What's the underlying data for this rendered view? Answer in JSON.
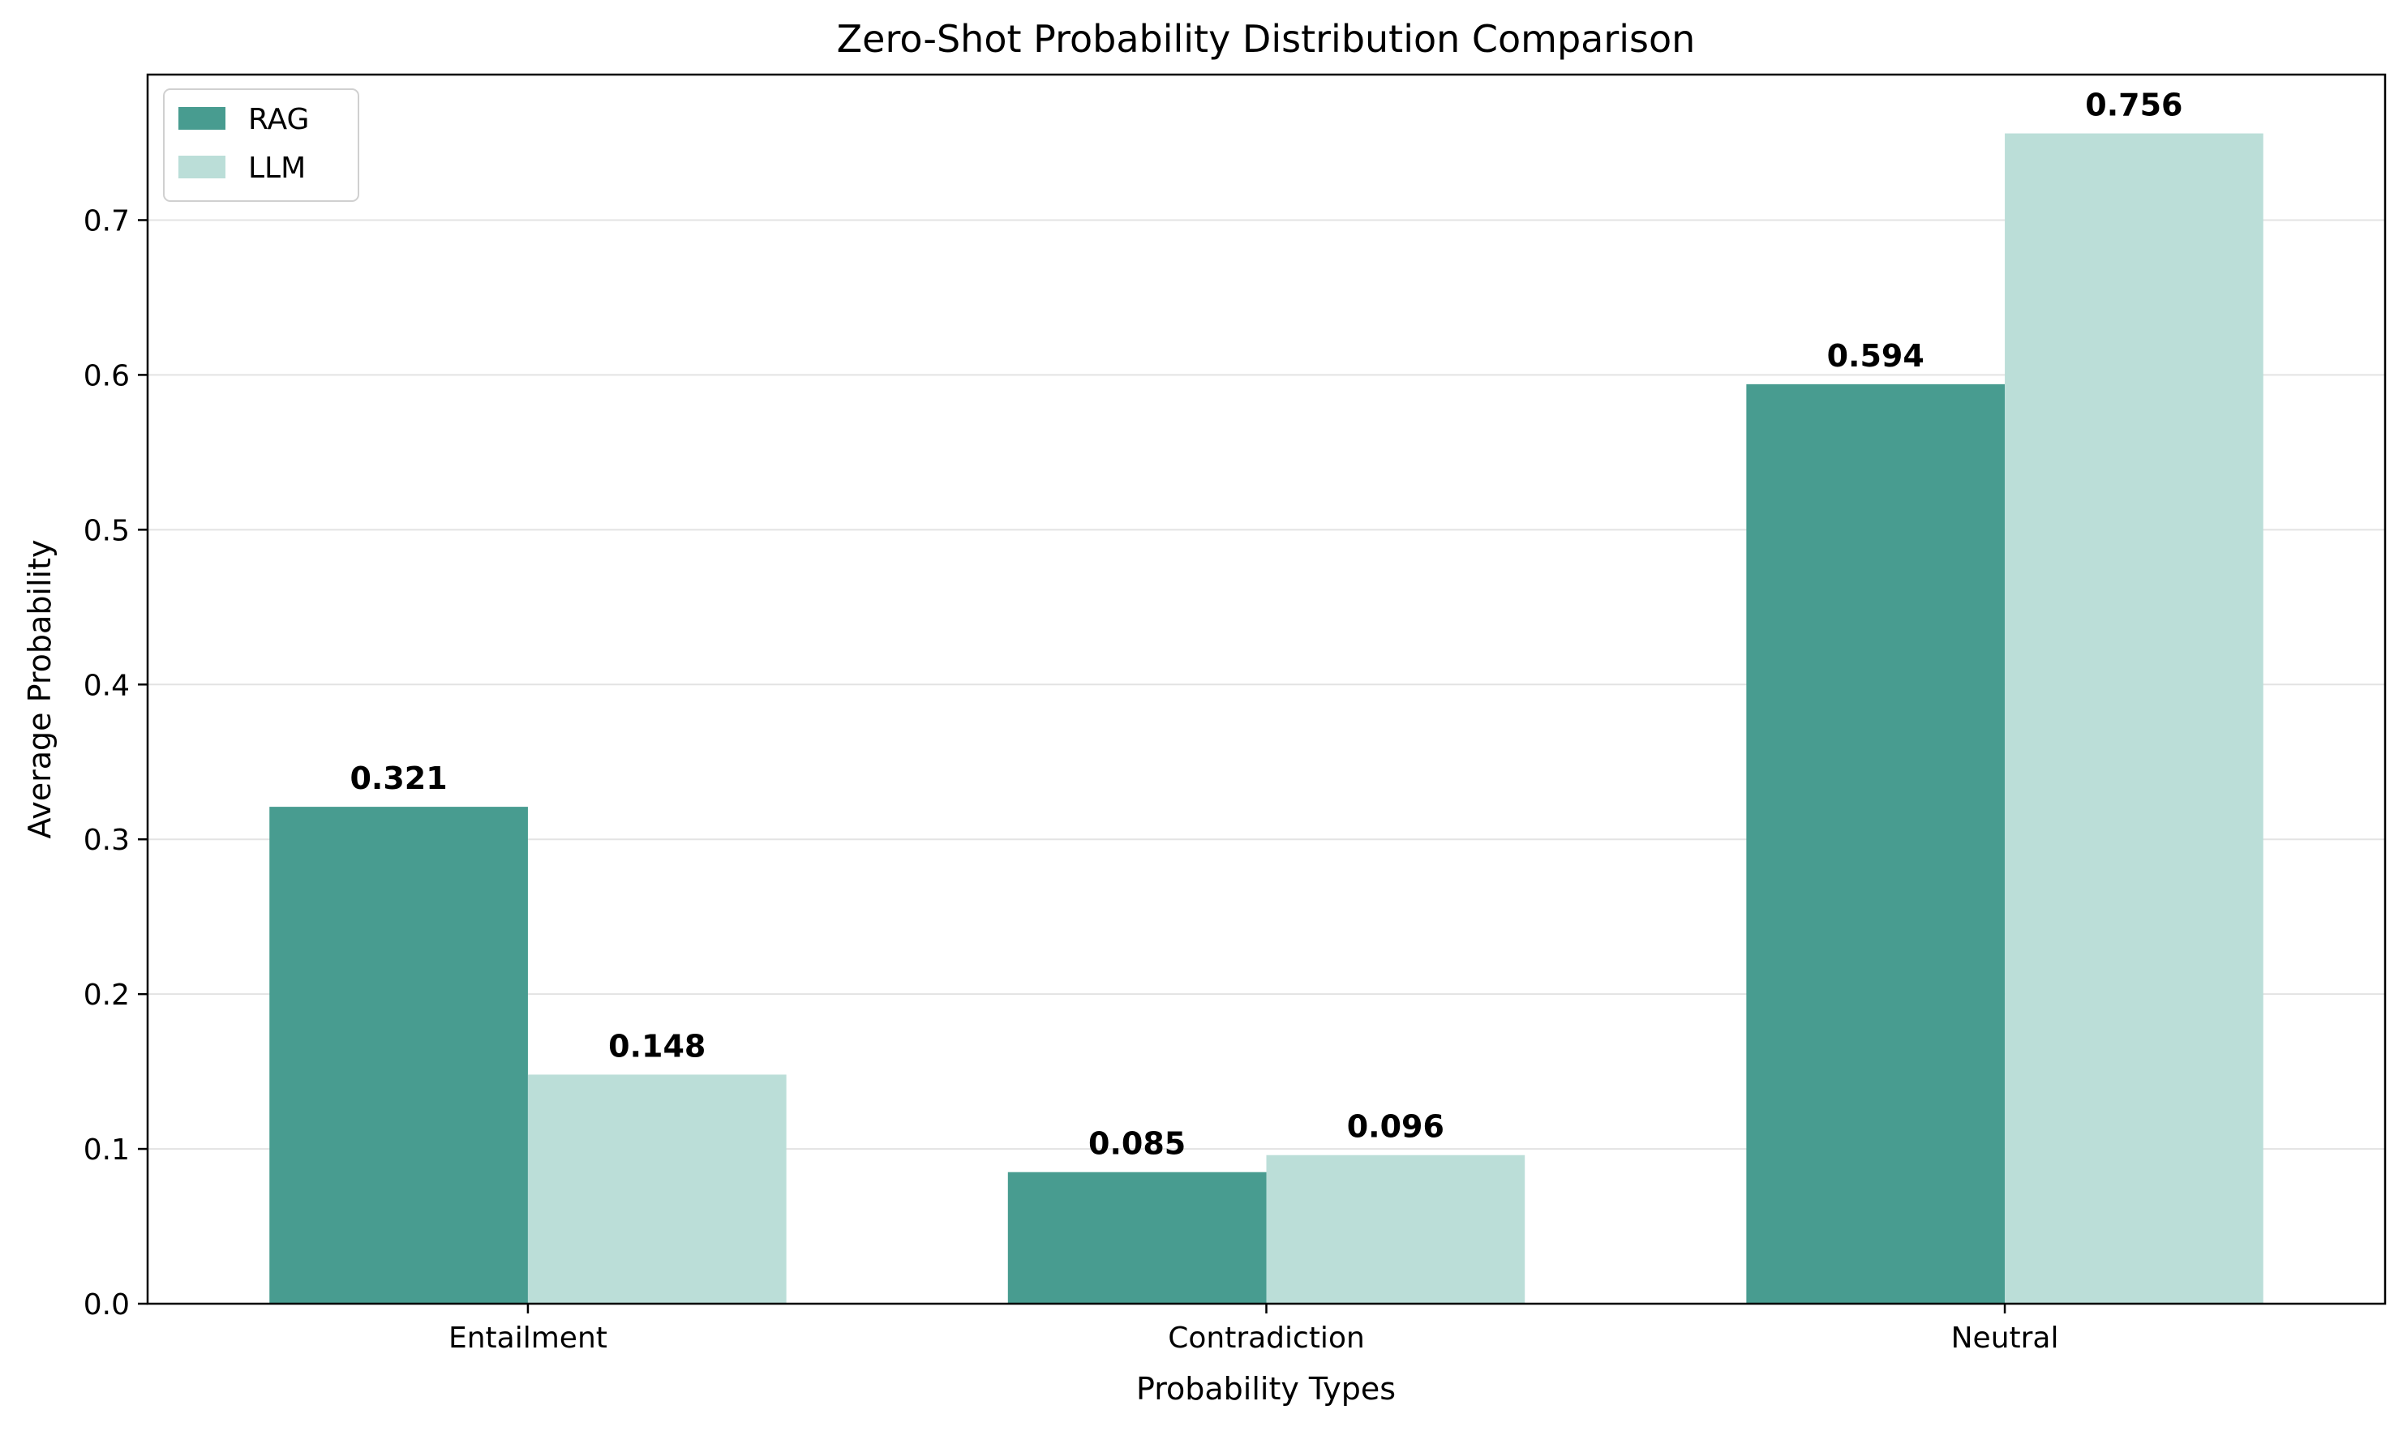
{
  "chart_data": {
    "type": "bar",
    "title": "Zero-Shot Probability Distribution Comparison",
    "xlabel": "Probability Types",
    "ylabel": "Average Probability",
    "categories": [
      "Entailment",
      "Contradiction",
      "Neutral"
    ],
    "series": [
      {
        "name": "RAG",
        "values": [
          0.321,
          0.085,
          0.594
        ],
        "color": "#489c90"
      },
      {
        "name": "LLM",
        "values": [
          0.148,
          0.096,
          0.756
        ],
        "color": "#bbded8"
      }
    ],
    "value_labels": [
      [
        "0.321",
        "0.085",
        "0.594"
      ],
      [
        "0.148",
        "0.096",
        "0.756"
      ]
    ],
    "ylim": [
      0,
      0.794
    ],
    "yticks": [
      0.0,
      0.1,
      0.2,
      0.3,
      0.4,
      0.5,
      0.6,
      0.7
    ],
    "ytick_labels": [
      "0.0",
      "0.1",
      "0.2",
      "0.3",
      "0.4",
      "0.5",
      "0.6",
      "0.7"
    ],
    "grid": "horizontal",
    "legend": "top-left"
  }
}
